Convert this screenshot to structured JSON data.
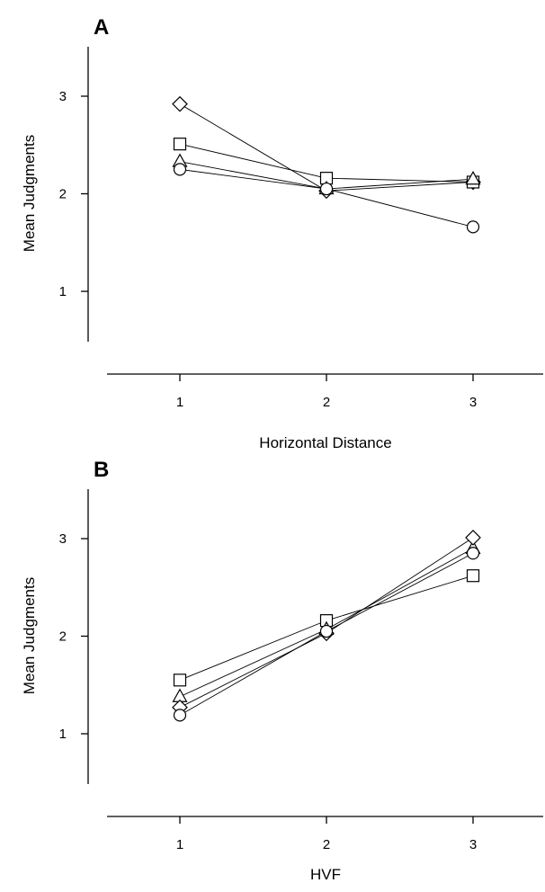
{
  "chart_data": [
    {
      "type": "line",
      "panel_label": "A",
      "xlabel": "Horizontal Distance",
      "ylabel": "Mean Judgments",
      "x": [
        1,
        2,
        3
      ],
      "xlim": [
        0.7,
        3.5
      ],
      "ylim": [
        0.5,
        3.5
      ],
      "xticks": [
        "1",
        "2",
        "3"
      ],
      "yticks": [
        "1",
        "2",
        "3"
      ],
      "grid": false,
      "legend": "none",
      "series": [
        {
          "marker": "diamond",
          "values": [
            2.92,
            2.03,
            2.12
          ]
        },
        {
          "marker": "square",
          "values": [
            2.51,
            2.16,
            2.12
          ]
        },
        {
          "marker": "triangle",
          "values": [
            2.33,
            2.05,
            2.15
          ]
        },
        {
          "marker": "circle",
          "values": [
            2.25,
            2.05,
            1.66
          ]
        }
      ]
    },
    {
      "type": "line",
      "panel_label": "B",
      "xlabel": "HVF",
      "ylabel": "Mean Judgments",
      "x": [
        1,
        2,
        3
      ],
      "xlim": [
        0.7,
        3.5
      ],
      "ylim": [
        0.5,
        3.5
      ],
      "xticks": [
        "1",
        "2",
        "3"
      ],
      "yticks": [
        "1",
        "2",
        "3"
      ],
      "grid": false,
      "legend": "none",
      "series": [
        {
          "marker": "square",
          "values": [
            1.55,
            2.16,
            2.62
          ]
        },
        {
          "marker": "triangle",
          "values": [
            1.38,
            2.07,
            2.9
          ]
        },
        {
          "marker": "diamond",
          "values": [
            1.27,
            2.03,
            3.01
          ]
        },
        {
          "marker": "circle",
          "values": [
            1.19,
            2.05,
            2.85
          ]
        }
      ]
    }
  ]
}
